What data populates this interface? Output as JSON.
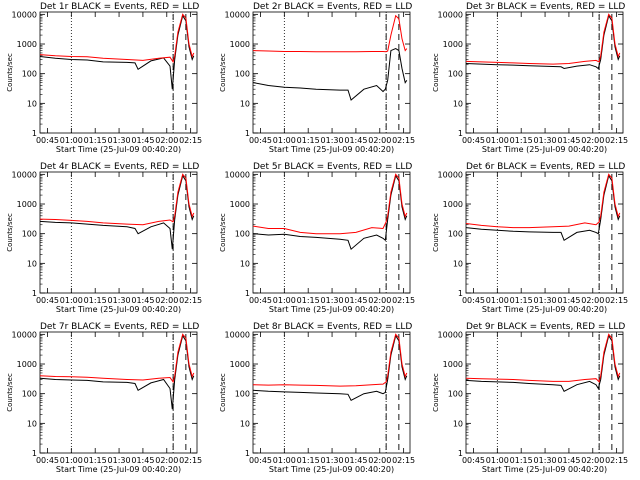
{
  "chart_data": [
    {
      "type": "line",
      "title": "Det 1r BLACK = Events, RED = LLD",
      "xlabel": "Start Time (25-Jul-09 00:40:20)",
      "ylabel": "Counts/sec",
      "yscale": "log",
      "ylim": [
        1,
        12000
      ],
      "xlim_min": [
        40.3,
        139
      ],
      "x_ticks": [
        "00:45",
        "01:00",
        "01:15",
        "01:30",
        "01:45",
        "02:00",
        "02:15"
      ],
      "y_ticks": [
        "1",
        "10",
        "100",
        "1000",
        "10000"
      ],
      "vlines_dotted_min": [
        60,
        124
      ],
      "vlines_dashed_min": [
        124,
        132
      ],
      "series": [
        {
          "color": "#000000",
          "x": [
            40.3,
            50,
            60,
            70,
            80,
            95,
            100,
            102,
            110,
            118,
            122,
            123.5,
            125,
            127,
            130,
            132,
            134,
            136,
            137
          ],
          "y": [
            380,
            330,
            300,
            290,
            250,
            240,
            230,
            140,
            270,
            340,
            180,
            30,
            300,
            2000,
            9000,
            6000,
            800,
            300,
            400
          ]
        },
        {
          "color": "#ff0000",
          "x": [
            40.3,
            50,
            60,
            70,
            80,
            95,
            105,
            115,
            122,
            124,
            125,
            127,
            130,
            132,
            134,
            136,
            137
          ],
          "y": [
            440,
            400,
            380,
            370,
            330,
            300,
            280,
            330,
            360,
            250,
            400,
            2500,
            10000,
            7500,
            1000,
            380,
            500
          ]
        }
      ]
    },
    {
      "type": "line",
      "title": "Det 2r BLACK = Events, RED = LLD",
      "xlabel": "Start Time (25-Jul-09 00:40:20)",
      "ylabel": "Counts/sec",
      "yscale": "log",
      "ylim": [
        1,
        12000
      ],
      "xlim_min": [
        40.3,
        139
      ],
      "x_ticks": [
        "00:45",
        "01:00",
        "01:15",
        "01:30",
        "01:45",
        "02:00",
        "02:15"
      ],
      "y_ticks": [
        "1",
        "10",
        "100",
        "1000",
        "10000"
      ],
      "vlines_dotted_min": [
        60,
        124
      ],
      "vlines_dashed_min": [
        124,
        132
      ],
      "series": [
        {
          "color": "#000000",
          "x": [
            40.3,
            50,
            60,
            70,
            80,
            95,
            100,
            102,
            110,
            118,
            122,
            123.5,
            125,
            127,
            130,
            132,
            134,
            136,
            137
          ],
          "y": [
            50,
            40,
            35,
            33,
            30,
            28,
            28,
            13,
            30,
            40,
            25,
            30,
            60,
            600,
            700,
            600,
            150,
            50,
            60
          ]
        },
        {
          "color": "#ff0000",
          "x": [
            40.3,
            50,
            60,
            70,
            80,
            95,
            105,
            115,
            122,
            124,
            125,
            127,
            130,
            132,
            134,
            136,
            137
          ],
          "y": [
            600,
            580,
            560,
            560,
            550,
            550,
            550,
            560,
            560,
            550,
            580,
            2000,
            9000,
            7000,
            1500,
            600,
            700
          ]
        }
      ]
    },
    {
      "type": "line",
      "title": "Det 3r BLACK = Events, RED = LLD",
      "xlabel": "Start Time (25-Jul-09 00:40:20)",
      "ylabel": "Counts/sec",
      "yscale": "log",
      "ylim": [
        1,
        12000
      ],
      "xlim_min": [
        40.3,
        139
      ],
      "x_ticks": [
        "00:45",
        "01:00",
        "01:15",
        "01:30",
        "01:45",
        "02:00",
        "02:15"
      ],
      "y_ticks": [
        "1",
        "10",
        "100",
        "1000",
        "10000"
      ],
      "vlines_dotted_min": [
        60,
        124
      ],
      "vlines_dashed_min": [
        124,
        132
      ],
      "series": [
        {
          "color": "#000000",
          "x": [
            40.3,
            50,
            60,
            70,
            80,
            95,
            100,
            102,
            110,
            118,
            122,
            123.5,
            125,
            127,
            130,
            132,
            134,
            136,
            137
          ],
          "y": [
            220,
            210,
            200,
            195,
            185,
            175,
            170,
            150,
            180,
            200,
            170,
            150,
            300,
            2000,
            9000,
            6000,
            800,
            300,
            400
          ]
        },
        {
          "color": "#ff0000",
          "x": [
            40.3,
            50,
            60,
            70,
            80,
            95,
            105,
            115,
            122,
            124,
            125,
            127,
            130,
            132,
            134,
            136,
            137
          ],
          "y": [
            260,
            250,
            240,
            230,
            220,
            210,
            220,
            260,
            280,
            250,
            400,
            2500,
            10000,
            7500,
            1000,
            380,
            500
          ]
        }
      ]
    },
    {
      "type": "line",
      "title": "Det 4r BLACK = Events, RED = LLD",
      "xlabel": "Start Time (25-Jul-09 00:40:20)",
      "ylabel": "Counts/sec",
      "yscale": "log",
      "ylim": [
        1,
        12000
      ],
      "xlim_min": [
        40.3,
        139
      ],
      "x_ticks": [
        "00:45",
        "01:00",
        "01:15",
        "01:30",
        "01:45",
        "02:00",
        "02:15"
      ],
      "y_ticks": [
        "1",
        "10",
        "100",
        "1000",
        "10000"
      ],
      "vlines_dotted_min": [
        60,
        124
      ],
      "vlines_dashed_min": [
        124,
        132
      ],
      "series": [
        {
          "color": "#000000",
          "x": [
            40.3,
            50,
            60,
            70,
            80,
            95,
            100,
            102,
            110,
            118,
            122,
            123.5,
            125,
            127,
            130,
            132,
            134,
            136,
            137
          ],
          "y": [
            260,
            240,
            230,
            210,
            190,
            170,
            150,
            100,
            170,
            230,
            150,
            30,
            300,
            2000,
            9000,
            6000,
            800,
            300,
            400
          ]
        },
        {
          "color": "#ff0000",
          "x": [
            40.3,
            50,
            60,
            70,
            80,
            95,
            105,
            115,
            122,
            124,
            125,
            127,
            130,
            132,
            134,
            136,
            137
          ],
          "y": [
            310,
            300,
            280,
            260,
            230,
            210,
            200,
            260,
            290,
            250,
            400,
            2500,
            10000,
            7500,
            1000,
            380,
            500
          ]
        }
      ]
    },
    {
      "type": "line",
      "title": "Det 5r BLACK = Events, RED = LLD",
      "xlabel": "Start Time (25-Jul-09 00:40:20)",
      "ylabel": "Counts/sec",
      "yscale": "log",
      "ylim": [
        1,
        12000
      ],
      "xlim_min": [
        40.3,
        139
      ],
      "x_ticks": [
        "00:45",
        "01:00",
        "01:15",
        "01:30",
        "01:45",
        "02:00",
        "02:15"
      ],
      "y_ticks": [
        "1",
        "10",
        "100",
        "1000",
        "10000"
      ],
      "vlines_dotted_min": [
        60,
        124
      ],
      "vlines_dashed_min": [
        124,
        132
      ],
      "series": [
        {
          "color": "#000000",
          "x": [
            40.3,
            50,
            60,
            70,
            80,
            95,
            100,
            102,
            110,
            118,
            122,
            123.5,
            125,
            127,
            130,
            132,
            134,
            136,
            137
          ],
          "y": [
            100,
            90,
            95,
            80,
            75,
            65,
            60,
            30,
            70,
            90,
            70,
            60,
            300,
            2000,
            9000,
            6000,
            800,
            300,
            400
          ]
        },
        {
          "color": "#ff0000",
          "x": [
            40.3,
            50,
            60,
            70,
            80,
            95,
            105,
            115,
            122,
            124,
            125,
            127,
            130,
            132,
            134,
            136,
            137
          ],
          "y": [
            180,
            150,
            150,
            110,
            100,
            100,
            110,
            160,
            150,
            250,
            400,
            2500,
            10000,
            7500,
            1000,
            380,
            500
          ]
        }
      ]
    },
    {
      "type": "line",
      "title": "Det 6r BLACK = Events, RED = LLD",
      "xlabel": "Start Time (25-Jul-09 00:40:20)",
      "ylabel": "Counts/sec",
      "yscale": "log",
      "ylim": [
        1,
        12000
      ],
      "xlim_min": [
        40.3,
        139
      ],
      "x_ticks": [
        "00:45",
        "01:00",
        "01:15",
        "01:30",
        "01:45",
        "02:00",
        "02:15"
      ],
      "y_ticks": [
        "1",
        "10",
        "100",
        "1000",
        "10000"
      ],
      "vlines_dotted_min": [
        60,
        124
      ],
      "vlines_dashed_min": [
        124,
        132
      ],
      "series": [
        {
          "color": "#000000",
          "x": [
            40.3,
            50,
            60,
            70,
            80,
            95,
            100,
            102,
            110,
            118,
            122,
            123.5,
            125,
            127,
            130,
            132,
            134,
            136,
            137
          ],
          "y": [
            160,
            140,
            130,
            120,
            115,
            110,
            110,
            60,
            110,
            130,
            110,
            100,
            300,
            2000,
            9000,
            6000,
            800,
            300,
            400
          ]
        },
        {
          "color": "#ff0000",
          "x": [
            40.3,
            50,
            60,
            70,
            80,
            95,
            105,
            115,
            122,
            124,
            125,
            127,
            130,
            132,
            134,
            136,
            137
          ],
          "y": [
            220,
            190,
            170,
            160,
            160,
            170,
            180,
            230,
            200,
            250,
            400,
            2500,
            10000,
            7500,
            1000,
            380,
            500
          ]
        }
      ]
    },
    {
      "type": "line",
      "title": "Det 7r BLACK = Events, RED = LLD",
      "xlabel": "Start Time (25-Jul-09 00:40:20)",
      "ylabel": "Counts/sec",
      "yscale": "log",
      "ylim": [
        1,
        12000
      ],
      "xlim_min": [
        40.3,
        139
      ],
      "x_ticks": [
        "00:45",
        "01:00",
        "01:15",
        "01:30",
        "01:45",
        "02:00",
        "02:15"
      ],
      "y_ticks": [
        "1",
        "10",
        "100",
        "1000",
        "10000"
      ],
      "vlines_dotted_min": [
        60,
        124
      ],
      "vlines_dashed_min": [
        124,
        132
      ],
      "series": [
        {
          "color": "#000000",
          "x": [
            40.3,
            50,
            60,
            70,
            80,
            95,
            100,
            102,
            110,
            118,
            122,
            123.5,
            125,
            127,
            130,
            132,
            134,
            136,
            137
          ],
          "y": [
            330,
            300,
            290,
            280,
            250,
            240,
            220,
            130,
            230,
            300,
            150,
            30,
            300,
            2000,
            9000,
            6000,
            800,
            300,
            400
          ]
        },
        {
          "color": "#ff0000",
          "x": [
            40.3,
            50,
            60,
            70,
            80,
            95,
            105,
            115,
            122,
            124,
            125,
            127,
            130,
            132,
            134,
            136,
            137
          ],
          "y": [
            400,
            380,
            370,
            360,
            330,
            300,
            290,
            330,
            350,
            250,
            400,
            2500,
            10000,
            7500,
            1000,
            380,
            500
          ]
        }
      ]
    },
    {
      "type": "line",
      "title": "Det 8r BLACK = Events, RED = LLD",
      "xlabel": "Start Time (25-Jul-09 00:40:20)",
      "ylabel": "Counts/sec",
      "yscale": "log",
      "ylim": [
        1,
        12000
      ],
      "xlim_min": [
        40.3,
        139
      ],
      "x_ticks": [
        "00:45",
        "01:00",
        "01:15",
        "01:30",
        "01:45",
        "02:00",
        "02:15"
      ],
      "y_ticks": [
        "1",
        "10",
        "100",
        "1000",
        "10000"
      ],
      "vlines_dotted_min": [
        60,
        124
      ],
      "vlines_dashed_min": [
        124,
        132
      ],
      "series": [
        {
          "color": "#000000",
          "x": [
            40.3,
            50,
            60,
            70,
            80,
            95,
            100,
            102,
            110,
            118,
            122,
            123.5,
            125,
            127,
            130,
            132,
            134,
            136,
            137
          ],
          "y": [
            130,
            120,
            115,
            110,
            105,
            100,
            95,
            60,
            100,
            120,
            100,
            110,
            300,
            2000,
            9000,
            6000,
            800,
            300,
            400
          ]
        },
        {
          "color": "#ff0000",
          "x": [
            40.3,
            50,
            60,
            70,
            80,
            95,
            105,
            115,
            122,
            124,
            125,
            127,
            130,
            132,
            134,
            136,
            137
          ],
          "y": [
            200,
            195,
            200,
            195,
            190,
            180,
            185,
            200,
            210,
            250,
            400,
            2500,
            10000,
            7500,
            1000,
            380,
            500
          ]
        }
      ]
    },
    {
      "type": "line",
      "title": "Det 9r BLACK = Events, RED = LLD",
      "xlabel": "Start Time (25-Jul-09 00:40:20)",
      "ylabel": "Counts/sec",
      "yscale": "log",
      "ylim": [
        1,
        12000
      ],
      "xlim_min": [
        40.3,
        139
      ],
      "x_ticks": [
        "00:45",
        "01:00",
        "01:15",
        "01:30",
        "01:45",
        "02:00",
        "02:15"
      ],
      "y_ticks": [
        "1",
        "10",
        "100",
        "1000",
        "10000"
      ],
      "vlines_dotted_min": [
        60,
        124
      ],
      "vlines_dashed_min": [
        124,
        132
      ],
      "series": [
        {
          "color": "#000000",
          "x": [
            40.3,
            50,
            60,
            70,
            80,
            95,
            100,
            102,
            110,
            118,
            122,
            123.5,
            125,
            127,
            130,
            132,
            134,
            136,
            137
          ],
          "y": [
            280,
            260,
            250,
            240,
            220,
            200,
            190,
            120,
            200,
            260,
            200,
            150,
            300,
            2000,
            9000,
            6000,
            800,
            300,
            400
          ]
        },
        {
          "color": "#ff0000",
          "x": [
            40.3,
            50,
            60,
            70,
            80,
            95,
            105,
            115,
            122,
            124,
            125,
            127,
            130,
            132,
            134,
            136,
            137
          ],
          "y": [
            330,
            320,
            310,
            300,
            280,
            260,
            260,
            300,
            320,
            250,
            400,
            2500,
            10000,
            7500,
            1000,
            380,
            500
          ]
        }
      ]
    }
  ]
}
